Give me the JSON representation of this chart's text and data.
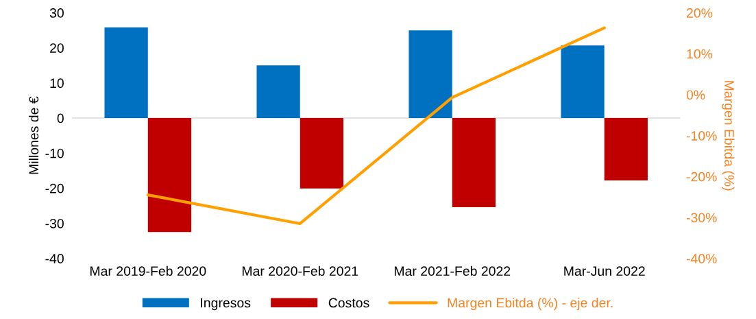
{
  "chart_data": {
    "type": "bar",
    "ylabel": "Millones de €",
    "y2label": "Margen Ebitda (%)",
    "categories": [
      "Mar 2019-Feb 2020",
      "Mar 2020-Feb 2021",
      "Mar 2021-Feb 2022",
      "Mar-Jun 2022"
    ],
    "series": [
      {
        "name": "Ingresos",
        "color": "#0070c0",
        "values": [
          25.8,
          15.0,
          25.0,
          20.7
        ]
      },
      {
        "name": "Costos",
        "color": "#c00000",
        "values": [
          -32.5,
          -20.1,
          -25.4,
          -17.8
        ]
      },
      {
        "name": "Margen Ebitda (%) - eje der.",
        "color": "#ffa000",
        "type": "line",
        "axis": "y2",
        "values": [
          -24.5,
          -31.5,
          -0.7,
          16.3
        ]
      }
    ],
    "ylim": [
      -40,
      30
    ],
    "yticks": [
      -40,
      -30,
      -20,
      -10,
      0,
      10,
      20,
      30
    ],
    "y2lim": [
      -40,
      20
    ],
    "y2ticks": [
      {
        "value": -40,
        "label": "-40%"
      },
      {
        "value": -30,
        "label": "-30%"
      },
      {
        "value": -20,
        "label": "-20%"
      },
      {
        "value": -10,
        "label": "-10%"
      },
      {
        "value": 0,
        "label": "0%"
      },
      {
        "value": 10,
        "label": "10%"
      },
      {
        "value": 20,
        "label": "20%"
      }
    ],
    "ref_lines": [
      {
        "axis": "y",
        "value": 0,
        "color": "#d9d9d9"
      }
    ],
    "grid": false,
    "legend": "bottom",
    "marker": "none"
  }
}
